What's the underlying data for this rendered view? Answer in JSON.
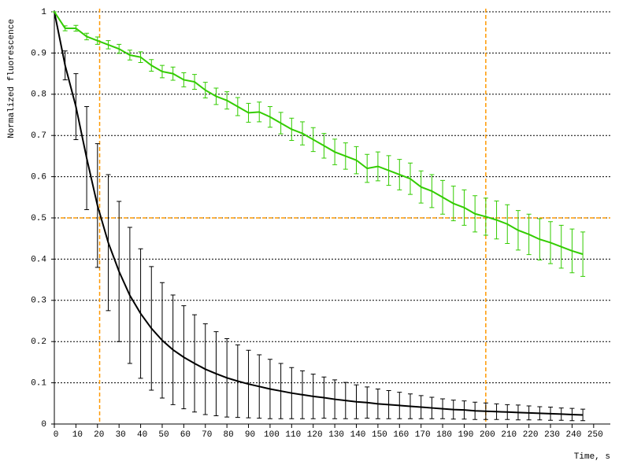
{
  "chart_data": {
    "type": "line",
    "x_label": "Time, s",
    "y_label": "Normalized fluorescence",
    "x": [
      0,
      5,
      10,
      15,
      20,
      25,
      30,
      35,
      40,
      45,
      50,
      55,
      60,
      65,
      70,
      75,
      80,
      85,
      90,
      95,
      100,
      105,
      110,
      115,
      120,
      125,
      130,
      135,
      140,
      145,
      150,
      155,
      160,
      165,
      170,
      175,
      180,
      185,
      190,
      195,
      200,
      205,
      210,
      215,
      220,
      225,
      230,
      235,
      240,
      245
    ],
    "series": [
      {
        "name": "black",
        "color": "#000000",
        "values": [
          1.0,
          0.87,
          0.77,
          0.645,
          0.53,
          0.44,
          0.37,
          0.312,
          0.268,
          0.232,
          0.203,
          0.18,
          0.162,
          0.147,
          0.133,
          0.122,
          0.112,
          0.104,
          0.097,
          0.091,
          0.085,
          0.08,
          0.075,
          0.071,
          0.067,
          0.064,
          0.06,
          0.057,
          0.054,
          0.052,
          0.049,
          0.047,
          0.045,
          0.043,
          0.041,
          0.039,
          0.037,
          0.035,
          0.034,
          0.032,
          0.031,
          0.03,
          0.029,
          0.028,
          0.027,
          0.026,
          0.025,
          0.024,
          0.023,
          0.022
        ],
        "errors": [
          0,
          0.035,
          0.08,
          0.125,
          0.15,
          0.165,
          0.17,
          0.165,
          0.157,
          0.15,
          0.14,
          0.133,
          0.125,
          0.118,
          0.11,
          0.102,
          0.095,
          0.088,
          0.082,
          0.077,
          0.072,
          0.067,
          0.062,
          0.058,
          0.054,
          0.05,
          0.047,
          0.044,
          0.041,
          0.038,
          0.036,
          0.034,
          0.032,
          0.03,
          0.028,
          0.026,
          0.024,
          0.023,
          0.022,
          0.021,
          0.02,
          0.019,
          0.018,
          0.018,
          0.017,
          0.016,
          0.016,
          0.015,
          0.015,
          0.014
        ]
      },
      {
        "name": "green",
        "color": "#33cc00",
        "values": [
          1.0,
          0.96,
          0.96,
          0.94,
          0.93,
          0.92,
          0.91,
          0.895,
          0.89,
          0.87,
          0.855,
          0.85,
          0.835,
          0.83,
          0.81,
          0.795,
          0.785,
          0.77,
          0.755,
          0.757,
          0.745,
          0.73,
          0.715,
          0.705,
          0.69,
          0.675,
          0.66,
          0.65,
          0.64,
          0.62,
          0.625,
          0.615,
          0.605,
          0.595,
          0.575,
          0.565,
          0.55,
          0.535,
          0.525,
          0.51,
          0.503,
          0.495,
          0.485,
          0.47,
          0.46,
          0.448,
          0.44,
          0.43,
          0.42,
          0.412
        ],
        "errors": [
          0,
          0.006,
          0.007,
          0.008,
          0.009,
          0.01,
          0.011,
          0.012,
          0.013,
          0.014,
          0.015,
          0.016,
          0.017,
          0.018,
          0.019,
          0.02,
          0.021,
          0.022,
          0.023,
          0.024,
          0.025,
          0.026,
          0.027,
          0.028,
          0.029,
          0.03,
          0.031,
          0.032,
          0.033,
          0.034,
          0.035,
          0.036,
          0.037,
          0.038,
          0.039,
          0.04,
          0.041,
          0.042,
          0.043,
          0.044,
          0.045,
          0.046,
          0.047,
          0.048,
          0.049,
          0.05,
          0.051,
          0.052,
          0.053,
          0.054
        ]
      }
    ],
    "reference_lines": {
      "color": "#ff9900",
      "x": [
        21,
        200
      ],
      "y": [
        0.5
      ]
    },
    "xlim": [
      0,
      257
    ],
    "ylim": [
      0,
      1
    ],
    "xticks": [
      0,
      10,
      20,
      30,
      40,
      50,
      60,
      70,
      80,
      90,
      100,
      110,
      120,
      130,
      140,
      150,
      160,
      170,
      180,
      190,
      200,
      210,
      220,
      230,
      240,
      250
    ],
    "yticks": [
      0,
      0.1,
      0.2,
      0.3,
      0.4,
      0.5,
      0.6,
      0.7,
      0.8,
      0.9,
      1
    ],
    "grid": true
  }
}
